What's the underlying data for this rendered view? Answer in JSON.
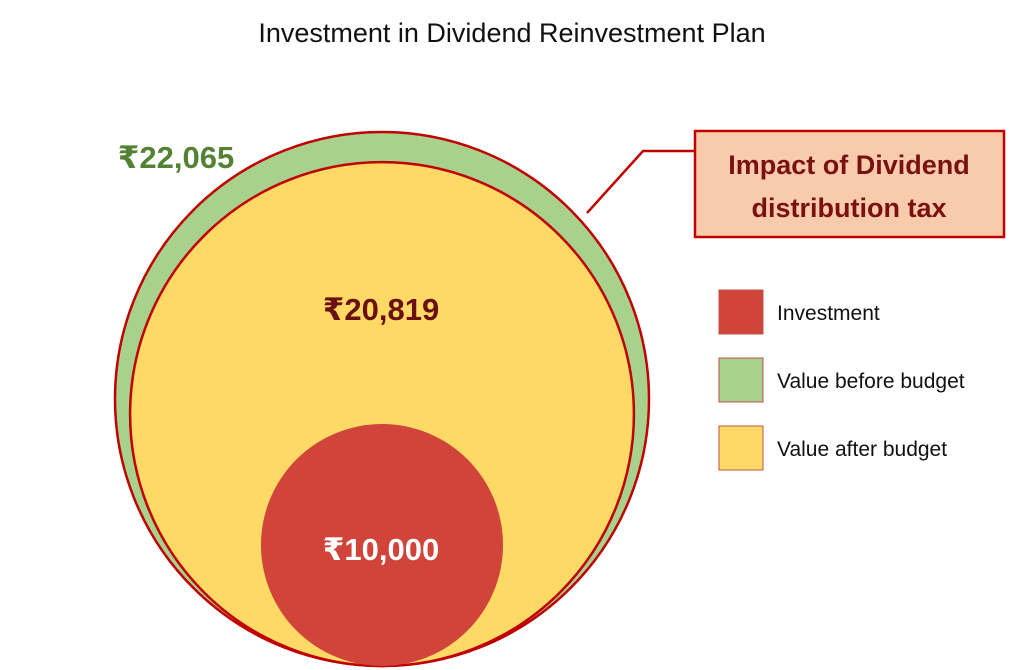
{
  "chart_data": {
    "type": "nested-circle",
    "title": "Investment in Dividend Reinvestment Plan",
    "currency_symbol": "₹",
    "series": [
      {
        "name": "Value before budget",
        "value": 22065,
        "label": "₹22,065",
        "color": "#a9d18e",
        "label_color": "#548235"
      },
      {
        "name": "Value after budget",
        "value": 20819,
        "label": "₹20,819",
        "color": "#ffd966",
        "label_color": "#6b1010"
      },
      {
        "name": "Investment",
        "value": 10000,
        "label": "₹10,000",
        "color": "#d0443a",
        "label_color": "#ffffff"
      }
    ],
    "legend": {
      "placement": "right",
      "entries": [
        "Investment",
        "Value before budget",
        "Value after budget"
      ]
    },
    "annotation": {
      "lines": [
        "Impact of Dividend",
        "distribution tax"
      ],
      "fill": "#f8cbad",
      "border": "#c00000"
    },
    "outline_color": "#c00000"
  }
}
